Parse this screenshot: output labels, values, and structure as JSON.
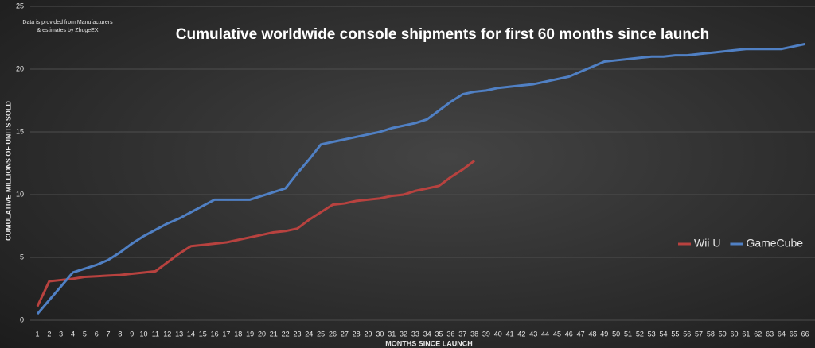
{
  "chart_data": {
    "type": "line",
    "title": "Cumulative worldwide console shipments for first 60 months since launch",
    "note": [
      "Data is provided from Manufacturers",
      "& estimates by ZhugeEX"
    ],
    "x_label": "MONTHS SINCE LAUNCH",
    "y_label": "CUMULATIVE MILLIONS OF UNITS SOLD",
    "categories": [
      1,
      2,
      3,
      4,
      5,
      6,
      7,
      8,
      9,
      10,
      11,
      12,
      13,
      14,
      15,
      16,
      17,
      18,
      19,
      20,
      21,
      22,
      23,
      24,
      25,
      26,
      27,
      28,
      29,
      30,
      31,
      32,
      33,
      34,
      35,
      36,
      37,
      38,
      39,
      40,
      41,
      42,
      43,
      44,
      45,
      46,
      47,
      48,
      49,
      50,
      51,
      52,
      53,
      54,
      55,
      56,
      57,
      58,
      59,
      60,
      61,
      62,
      63,
      64,
      65,
      66
    ],
    "series": [
      {
        "name": "Wii U",
        "color": "#b8423f",
        "values": [
          1.1,
          3.1,
          3.2,
          3.3,
          3.45,
          3.5,
          3.55,
          3.6,
          3.7,
          3.8,
          3.9,
          4.6,
          5.3,
          5.9,
          6.0,
          6.1,
          6.2,
          6.4,
          6.6,
          6.8,
          7.0,
          7.1,
          7.3,
          8.0,
          8.6,
          9.2,
          9.3,
          9.5,
          9.6,
          9.7,
          9.9,
          10.0,
          10.3,
          10.5,
          10.7,
          11.4,
          12.0,
          12.7,
          null,
          null,
          null,
          null,
          null,
          null,
          null,
          null,
          null,
          null,
          null,
          null,
          null,
          null,
          null,
          null,
          null,
          null,
          null,
          null,
          null,
          null,
          null,
          null,
          null,
          null,
          null,
          null
        ]
      },
      {
        "name": "GameCube",
        "color": "#5080c4",
        "values": [
          0.5,
          1.6,
          2.7,
          3.8,
          4.1,
          4.4,
          4.8,
          5.4,
          6.1,
          6.7,
          7.2,
          7.7,
          8.1,
          8.6,
          9.1,
          9.6,
          9.6,
          9.6,
          9.6,
          9.9,
          10.2,
          10.5,
          11.7,
          12.8,
          14.0,
          14.2,
          14.4,
          14.6,
          14.8,
          15.0,
          15.3,
          15.5,
          15.7,
          16.0,
          16.7,
          17.4,
          18.0,
          18.2,
          18.3,
          18.5,
          18.6,
          18.7,
          18.8,
          19.0,
          19.2,
          19.4,
          19.8,
          20.2,
          20.6,
          20.7,
          20.8,
          20.9,
          21.0,
          21.0,
          21.1,
          21.1,
          21.2,
          21.3,
          21.4,
          21.5,
          21.6,
          21.6,
          21.6,
          21.6,
          21.8,
          22.0
        ]
      }
    ],
    "ylim": [
      0,
      25
    ],
    "yticks": [
      0,
      5,
      10,
      15,
      20,
      25
    ],
    "grid": true,
    "legend": "right"
  }
}
